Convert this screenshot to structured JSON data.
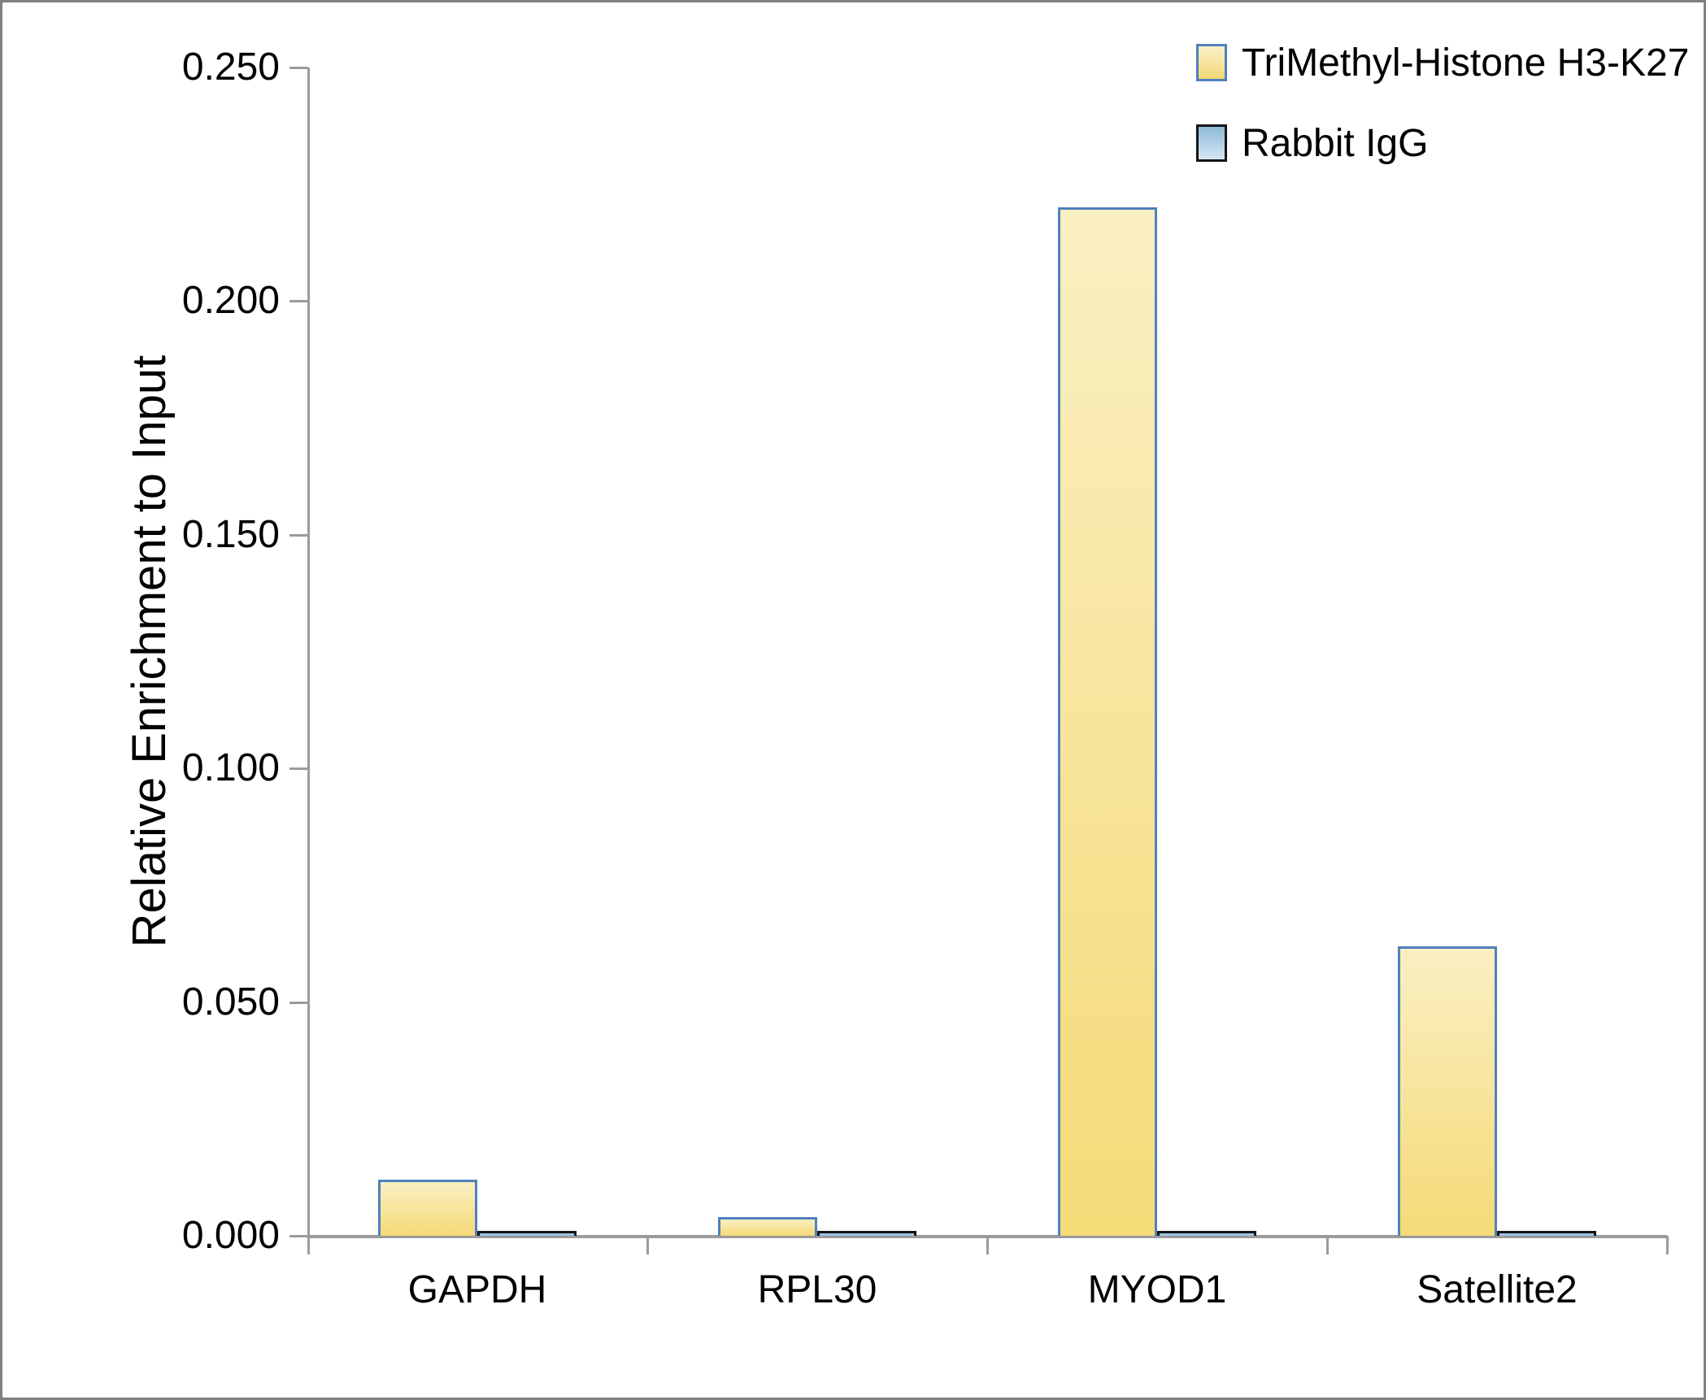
{
  "chart_data": {
    "type": "bar",
    "title": "",
    "xlabel": "",
    "ylabel": "Relative Enrichment to Input",
    "categories": [
      "GAPDH",
      "RPL30",
      "MYOD1",
      "Satellite2"
    ],
    "series": [
      {
        "name": "TriMethyl-Histone H3-K27",
        "values": [
          0.012,
          0.004,
          0.22,
          0.062
        ],
        "bar_fill_top": "#FAEFC2",
        "bar_fill_bottom": "#F5DA77",
        "bar_border": "#4F81BD",
        "legend_fill_top": "#FBF2CC",
        "legend_fill_bottom": "#F3D674",
        "legend_border": "#4F81BD"
      },
      {
        "name": "Rabbit IgG",
        "values": [
          0.001,
          0.001,
          0.001,
          0.001
        ],
        "bar_fill_top": "#9DC3E1",
        "bar_fill_bottom": "#9DC3E1",
        "bar_border": "#151515",
        "legend_fill_top": "#8FB9D8",
        "legend_fill_bottom": "#D5E7F3",
        "legend_border": "#151515"
      }
    ],
    "ylim": [
      0,
      0.25
    ],
    "y_ticks": [
      "0.000",
      "0.050",
      "0.100",
      "0.150",
      "0.200",
      "0.250"
    ],
    "grid": false,
    "legend_position": "top-right"
  },
  "colors": {
    "axis": "#9B9B9B",
    "text": "#000000",
    "frame_border": "#808080",
    "background": "#FFFFFF"
  }
}
